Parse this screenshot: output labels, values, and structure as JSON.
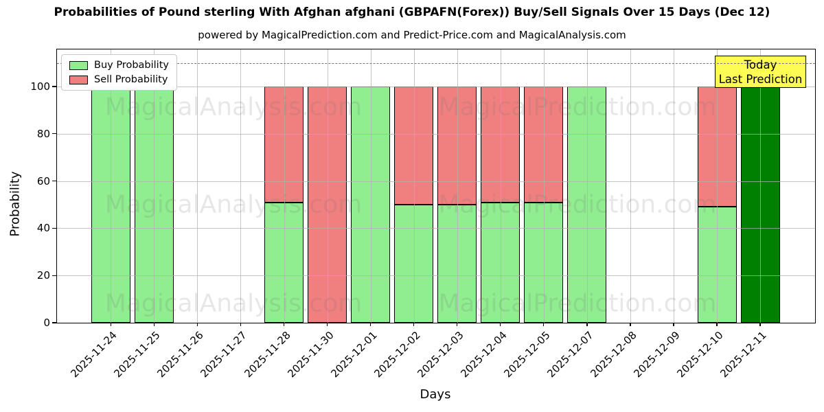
{
  "title": "Probabilities of Pound sterling With Afghan afghani (GBPAFN(Forex)) Buy/Sell Signals Over 15 Days (Dec 12)",
  "subtitle": "powered by MagicalPrediction.com and Predict-Price.com and MagicalAnalysis.com",
  "legend": {
    "items": [
      {
        "label": "Buy Probability",
        "color": "#90EE90"
      },
      {
        "label": "Sell Probability",
        "color": "#F08080"
      }
    ]
  },
  "annotation": {
    "line1": "Today",
    "line2": "Last Prediction",
    "bg_color": "#FCFC3C"
  },
  "axes": {
    "xlabel": "Days",
    "ylabel": "Probability",
    "yticks": [
      0,
      20,
      40,
      60,
      80,
      100
    ],
    "ylim": [
      0,
      115.7
    ],
    "dashed_line_y": 110,
    "grid": true
  },
  "watermark": {
    "left": "MagicalAnalysis.com",
    "right": "MagicalPrediction.com"
  },
  "colors": {
    "buy": "#90EE90",
    "sell": "#F08080",
    "today": "#008000",
    "grid": "#b0b0b0",
    "dashed": "#777777",
    "edge": "#000000",
    "annotation_bg": "#FCFC3C"
  },
  "chart_data": {
    "type": "bar",
    "stacked": true,
    "title": "Probabilities of Pound sterling With Afghan afghani (GBPAFN(Forex)) Buy/Sell Signals Over 15 Days (Dec 12)",
    "xlabel": "Days",
    "ylabel": "Probability",
    "ylim": [
      0,
      115.7
    ],
    "grid": true,
    "legend_position": "upper left",
    "dashed_line_y": 110,
    "categories": [
      "2025-11-24",
      "2025-11-25",
      "2025-11-26",
      "2025-11-27",
      "2025-11-28",
      "2025-11-30",
      "2025-12-01",
      "2025-12-02",
      "2025-12-03",
      "2025-12-04",
      "2025-12-05",
      "2025-12-07",
      "2025-12-08",
      "2025-12-09",
      "2025-12-10",
      "2025-12-11"
    ],
    "series": [
      {
        "name": "Buy Probability",
        "color": "#90EE90",
        "values": [
          100,
          100,
          0,
          0,
          51,
          0,
          100,
          50,
          50,
          51,
          51,
          100,
          0,
          0,
          49,
          100
        ]
      },
      {
        "name": "Sell Probability",
        "color": "#F08080",
        "values": [
          0,
          0,
          0,
          0,
          49,
          100,
          0,
          50,
          50,
          49,
          49,
          0,
          0,
          0,
          51,
          0
        ]
      }
    ],
    "today_index": 15,
    "today_color": "#008000",
    "today_label": "Today\nLast Prediction"
  }
}
